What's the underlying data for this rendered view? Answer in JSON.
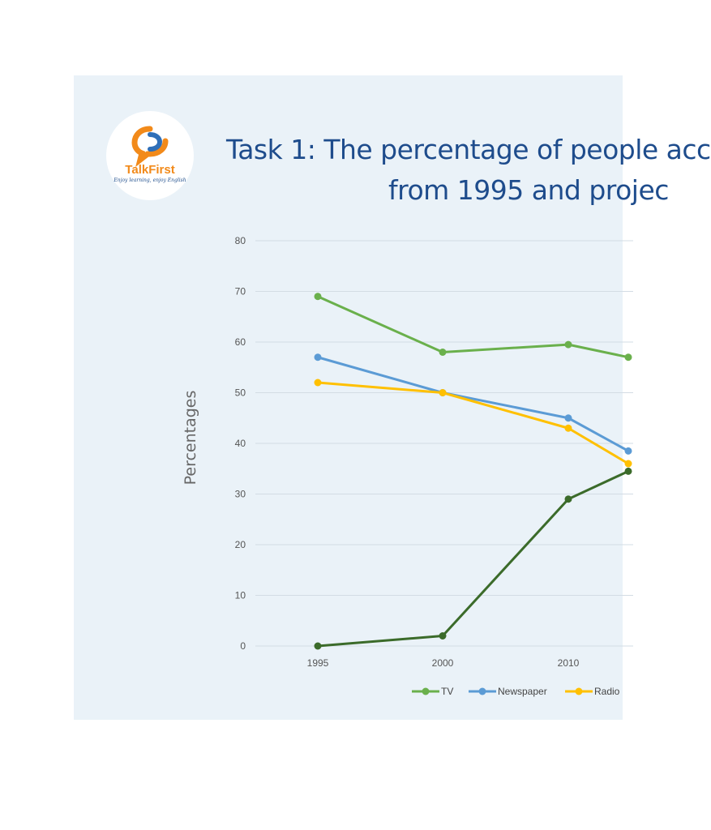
{
  "brand": {
    "name": "TalkFirst",
    "tagline": "Enjoy learning, enjoy English",
    "colors": {
      "orange": "#f28a1a",
      "blue": "#2f6fb8",
      "navy": "#1f4e8c"
    }
  },
  "chart_data": {
    "type": "line",
    "title_line1": "Task 1: The percentage of people acc",
    "title_line2": "from 1995 and projec",
    "ylabel": "Percentages",
    "xlabel": "",
    "x": [
      "1995",
      "2000",
      "2010"
    ],
    "ylim": [
      0,
      80
    ],
    "yticks": [
      0,
      10,
      20,
      30,
      40,
      50,
      60,
      70,
      80
    ],
    "grid": true,
    "legend_position": "bottom",
    "series": [
      {
        "name": "TV",
        "color": "#6ab04c",
        "values": [
          69,
          58,
          59.5
        ],
        "continues_to": 57
      },
      {
        "name": "Newspaper",
        "color": "#5b9bd5",
        "values": [
          57,
          50,
          45
        ],
        "continues_to": 38.5
      },
      {
        "name": "Radio",
        "color": "#ffc000",
        "values": [
          52,
          50,
          43
        ],
        "continues_to": 36
      },
      {
        "name": "",
        "color": "#3b6b2a",
        "values": [
          0,
          2,
          29
        ],
        "continues_to": 34.5
      }
    ],
    "legend_labels": [
      "TV",
      "Newspaper",
      "Radio"
    ]
  }
}
